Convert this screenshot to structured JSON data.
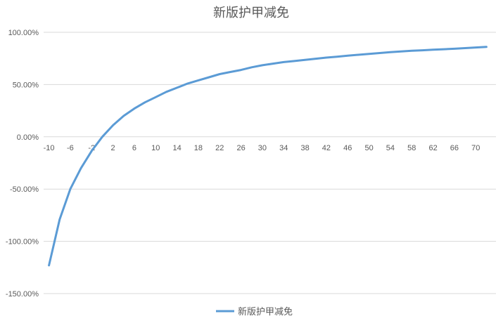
{
  "chart_data": {
    "type": "line",
    "title": "新版护甲减免",
    "xlabel": "",
    "ylabel": "",
    "x": [
      -10,
      -8,
      -6,
      -4,
      -2,
      0,
      2,
      4,
      6,
      8,
      10,
      12,
      14,
      16,
      18,
      20,
      22,
      24,
      26,
      28,
      30,
      32,
      34,
      36,
      38,
      40,
      42,
      44,
      46,
      48,
      50,
      52,
      54,
      56,
      58,
      60,
      62,
      64,
      66,
      68,
      70,
      72
    ],
    "x_tick_labels": [
      "-10",
      "-6",
      "-2",
      "2",
      "6",
      "10",
      "14",
      "18",
      "22",
      "26",
      "30",
      "34",
      "38",
      "42",
      "46",
      "50",
      "54",
      "58",
      "62",
      "66",
      "70"
    ],
    "series": [
      {
        "name": "新版护甲减免",
        "color": "#5b9bd5",
        "values": [
          -123,
          -79,
          -50,
          -30,
          -13.5,
          0,
          11,
          20,
          27,
          33,
          38,
          43,
          47,
          51,
          54,
          57,
          60,
          62,
          64,
          66.5,
          68.5,
          70,
          71.5,
          72.5,
          73.6,
          74.7,
          75.8,
          76.7,
          77.6,
          78.5,
          79.4,
          80.2,
          81,
          81.7,
          82.3,
          82.8,
          83.3,
          83.8,
          84.3,
          84.9,
          85.5,
          86
        ]
      }
    ],
    "y_unit": "%",
    "ylim": [
      -150,
      100
    ],
    "y_ticks": [
      100,
      50,
      0,
      -50,
      -100,
      -150
    ],
    "y_tick_labels": [
      "100.00%",
      "50.00%",
      "0.00%",
      "-50.00%",
      "-100.00%",
      "-150.00%"
    ],
    "grid": true,
    "legend": "bottom"
  }
}
